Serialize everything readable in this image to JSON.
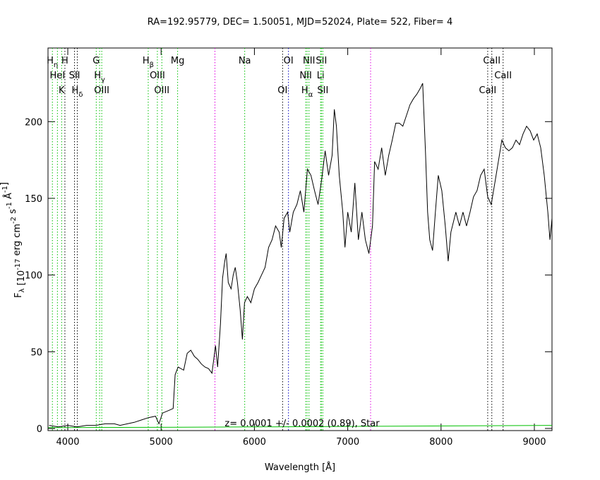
{
  "chart_data": {
    "type": "line",
    "title": "RA=192.95779, DEC= 1.50051, MJD=52024, Plate= 522, Fiber=  4",
    "x_label": "Wavelength [Å]",
    "y_label": [
      {
        "text": "F"
      },
      {
        "text": "λ",
        "shift": "sub"
      },
      {
        "text": " [10"
      },
      {
        "text": "-17",
        "shift": "sup"
      },
      {
        "text": " erg cm"
      },
      {
        "text": "-2",
        "shift": "sup"
      },
      {
        "text": " s"
      },
      {
        "text": "-1",
        "shift": "sup"
      },
      {
        "text": " Å"
      },
      {
        "text": "-1",
        "shift": "sup"
      },
      {
        "text": "]"
      }
    ],
    "annotation": "z= 0.0001 +/- 0.0002 (0.89), Star",
    "xlim": [
      3788,
      9189
    ],
    "ylim": [
      -1.4,
      248
    ],
    "xticks": [
      4000,
      5000,
      6000,
      7000,
      8000,
      9000
    ],
    "yticks": [
      0,
      50,
      100,
      150,
      200
    ],
    "series": [
      {
        "color": "#000000",
        "x": [
          3800,
          3900,
          4000,
          4100,
          4200,
          4300,
          4400,
          4500,
          4560,
          4712,
          4788,
          4864,
          4940,
          4977,
          5015,
          5091,
          5129,
          5150,
          5182,
          5242,
          5280,
          5318,
          5356,
          5394,
          5432,
          5470,
          5508,
          5545,
          5583,
          5606,
          5636,
          5659,
          5682,
          5697,
          5720,
          5750,
          5773,
          5795,
          5818,
          5848,
          5871,
          5894,
          5924,
          5962,
          6000,
          6038,
          6076,
          6114,
          6152,
          6189,
          6227,
          6265,
          6288,
          6318,
          6356,
          6379,
          6417,
          6455,
          6492,
          6530,
          6568,
          6606,
          6644,
          6682,
          6720,
          6758,
          6795,
          6833,
          6856,
          6879,
          6909,
          6947,
          6970,
          7000,
          7038,
          7076,
          7114,
          7152,
          7189,
          7227,
          7265,
          7288,
          7326,
          7364,
          7402,
          7439,
          7477,
          7515,
          7553,
          7591,
          7629,
          7667,
          7705,
          7742,
          7780,
          7803,
          7833,
          7856,
          7879,
          7909,
          7939,
          7970,
          8008,
          8045,
          8076,
          8106,
          8159,
          8197,
          8235,
          8273,
          8311,
          8348,
          8386,
          8424,
          8462,
          8500,
          8538,
          8576,
          8614,
          8652,
          8689,
          8727,
          8765,
          8803,
          8841,
          8879,
          8917,
          8955,
          8992,
          9030,
          9068,
          9106,
          9144,
          9167,
          9189
        ],
        "values": [
          2,
          1,
          2,
          1,
          2,
          2,
          3,
          3,
          2,
          4,
          5.5,
          7,
          8,
          3,
          10,
          12,
          13,
          35,
          40,
          38,
          49,
          51,
          47,
          45,
          42,
          40,
          39,
          36,
          54,
          40,
          68,
          98,
          109,
          114,
          95,
          91,
          100,
          105,
          95,
          77,
          58,
          82,
          86,
          82,
          91,
          95,
          100,
          105,
          118,
          123,
          132,
          128,
          118,
          137,
          141,
          128,
          141,
          146,
          155,
          141,
          169,
          165,
          155,
          146,
          162,
          181,
          165,
          178,
          208,
          197,
          165,
          141,
          118,
          141,
          128,
          160,
          123,
          141,
          123,
          114,
          132,
          174,
          169,
          183,
          165,
          178,
          188,
          199,
          199,
          197,
          204,
          211,
          215,
          218,
          222,
          225,
          181,
          141,
          123,
          116,
          141,
          165,
          155,
          132,
          109,
          128,
          141,
          132,
          141,
          132,
          141,
          151,
          155,
          165,
          169,
          151,
          146,
          160,
          174,
          188,
          183,
          181,
          183,
          188,
          185,
          192,
          197,
          194,
          188,
          192,
          183,
          165,
          141,
          123,
          137
        ]
      },
      {
        "color": "#00c000",
        "x": [
          3790,
          6000,
          9189
        ],
        "values": [
          0.5,
          1,
          2
        ]
      }
    ],
    "lines": [
      {
        "label": "H",
        "sub": "η",
        "wavelength": 3835,
        "color": "#00c000",
        "row": 0
      },
      {
        "label": "H",
        "wavelength": 3969,
        "color": "#000000",
        "row": 0
      },
      {
        "label": "G",
        "wavelength": 4305,
        "color": "#00c000",
        "row": 0
      },
      {
        "label": "H",
        "sub": "β",
        "wavelength": 4862,
        "color": "#00c000",
        "row": 0
      },
      {
        "label": "Mg",
        "wavelength": 5177,
        "color": "#00c000",
        "row": 0
      },
      {
        "label": "Na",
        "wavelength": 5896,
        "color": "#00c000",
        "row": 0
      },
      {
        "label": "OI",
        "wavelength": 6365,
        "color": "#0000c0",
        "row": 0
      },
      {
        "label": "NII",
        "wavelength": 6585,
        "color": "#00c000",
        "row": 0
      },
      {
        "label": "SII",
        "wavelength": 6718,
        "color": "#00c000",
        "row": 0
      },
      {
        "label": "CaII",
        "wavelength": 8544,
        "color": "#000000",
        "row": 0
      },
      {
        "label": "HeI",
        "wavelength": 3889,
        "color": "#00c000",
        "row": 1
      },
      {
        "label": "SII",
        "wavelength": 4072,
        "color": "#000000",
        "row": 1
      },
      {
        "label": "H",
        "sub": "γ",
        "wavelength": 4341,
        "color": "#00c000",
        "row": 1
      },
      {
        "label": "OIII",
        "wavelength": 4960,
        "color": "#00c000",
        "row": 1
      },
      {
        "label": "NII",
        "wavelength": 6550,
        "color": "#00c000",
        "row": 1
      },
      {
        "label": "Li",
        "wavelength": 6709,
        "color": "#00c000",
        "row": 1
      },
      {
        "label": "CaII",
        "wavelength": 8665,
        "color": "#000000",
        "row": 1
      },
      {
        "label": "K",
        "wavelength": 3934,
        "color": "#00c000",
        "row": 2
      },
      {
        "label": "H",
        "sub": "δ",
        "wavelength": 4102,
        "color": "#000000",
        "row": 2
      },
      {
        "label": "OIII",
        "wavelength": 4364,
        "color": "#00c000",
        "row": 2
      },
      {
        "label": "OIII",
        "wavelength": 5008,
        "color": "#00c000",
        "row": 2
      },
      {
        "label": "OI",
        "wavelength": 6302,
        "color": "#000000",
        "row": 2
      },
      {
        "label": "H",
        "sub": "α",
        "wavelength": 6565,
        "color": "#00c000",
        "row": 2
      },
      {
        "label": "SII",
        "wavelength": 6733,
        "color": "#00c000",
        "row": 2
      },
      {
        "label": "CaII",
        "wavelength": 8500,
        "color": "#000000",
        "row": 2
      },
      {
        "wavelength": 5577,
        "color": "#e000e0"
      },
      {
        "wavelength": 7245,
        "color": "#e000e0"
      }
    ]
  }
}
